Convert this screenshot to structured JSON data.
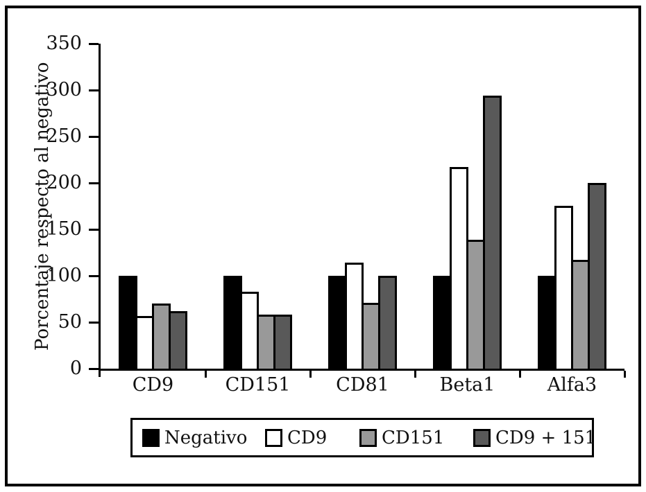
{
  "chart_data": {
    "type": "bar",
    "title": "",
    "xlabel": "",
    "ylabel": "Porcentaje respecto al negativo",
    "categories": [
      "CD9",
      "CD151",
      "CD81",
      "Beta1",
      "Alfa3"
    ],
    "series": [
      {
        "name": "Negativo",
        "color": "#000000",
        "values": [
          100,
          100,
          100,
          100,
          100
        ]
      },
      {
        "name": "CD9",
        "color": "#ffffff",
        "values": [
          57,
          83,
          114,
          217,
          175
        ]
      },
      {
        "name": "CD151",
        "color": "#999999",
        "values": [
          70,
          58,
          71,
          139,
          117
        ]
      },
      {
        "name": "CD9 + 151",
        "color": "#595959",
        "values": [
          62,
          58,
          100,
          294,
          200
        ]
      }
    ],
    "ylim": [
      0,
      350
    ],
    "yticks": [
      0,
      50,
      100,
      150,
      200,
      250,
      300,
      350
    ],
    "grid": false,
    "legend_position": "bottom",
    "bar_border_color": "#000000",
    "frame_color": "#000000"
  }
}
